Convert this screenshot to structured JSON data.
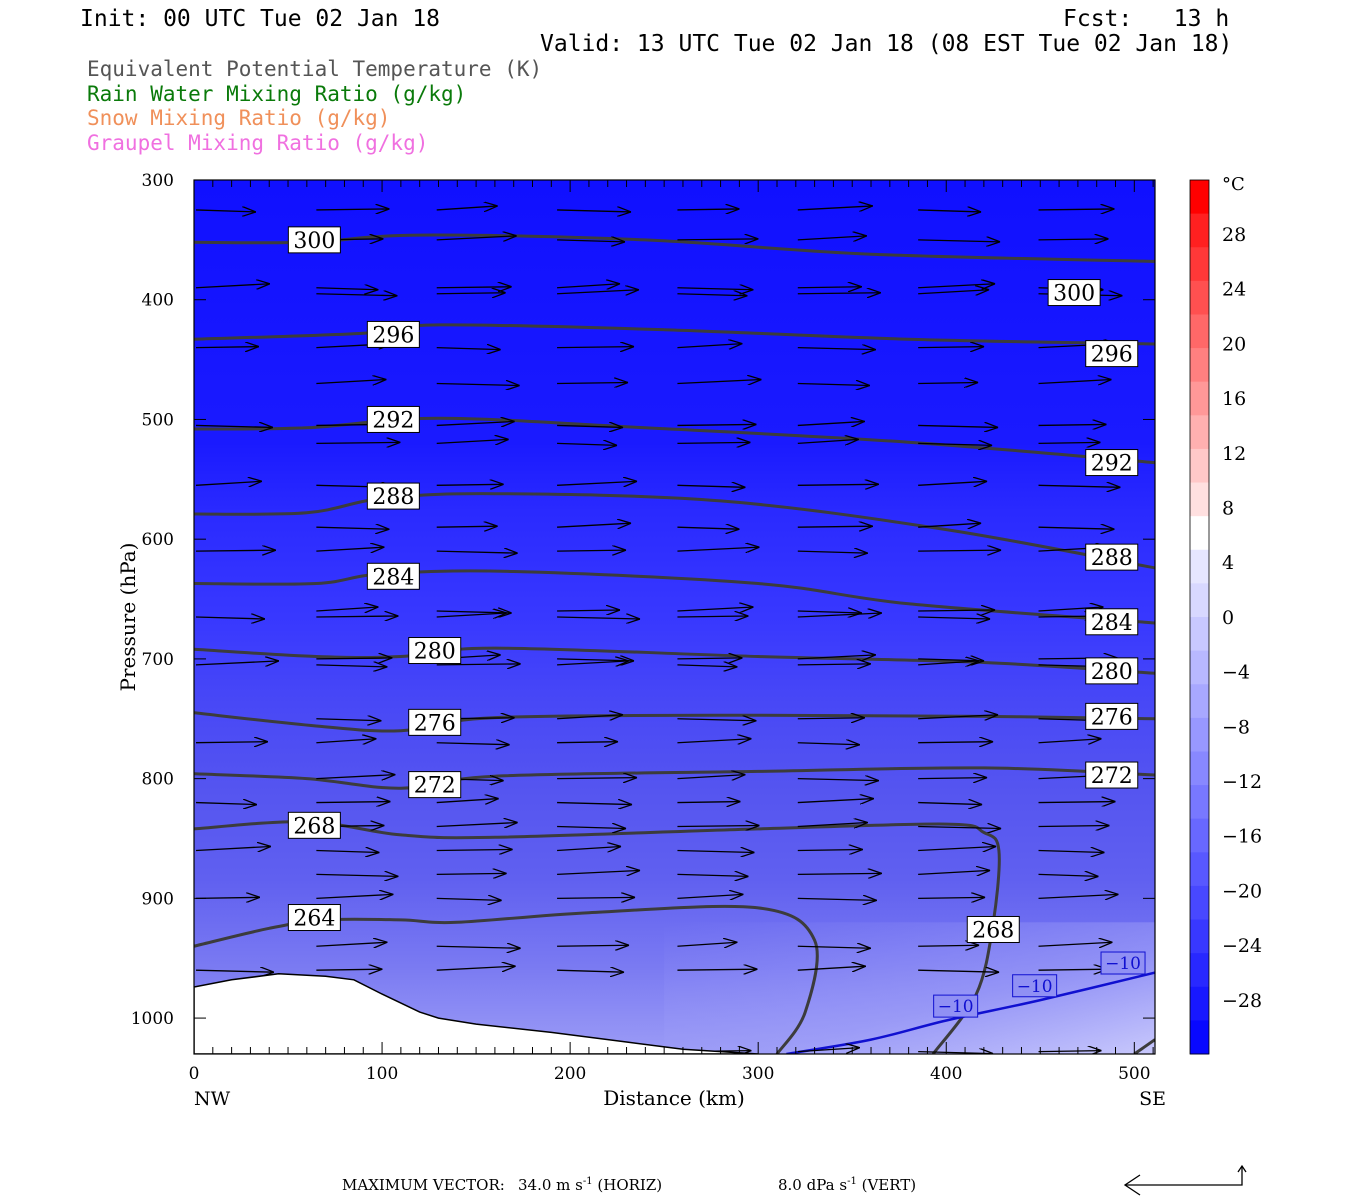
{
  "header": {
    "init": "Init: 00 UTC Tue 02 Jan 18",
    "fcst": "Fcst:   13 h",
    "valid": "Valid: 13 UTC Tue 02 Jan 18 (08 EST Tue 02 Jan 18)"
  },
  "legend": {
    "items": [
      {
        "label": "Equivalent Potential Temperature (K)",
        "color": "#555555"
      },
      {
        "label": "Rain Water Mixing Ratio (g/kg)",
        "color": "#0a7a0a"
      },
      {
        "label": "Snow Mixing Ratio (g/kg)",
        "color": "#f0905a"
      },
      {
        "label": "Graupel Mixing Ratio (g/kg)",
        "color": "#f070e0"
      }
    ]
  },
  "footer": {
    "max_vector_label": "MAXIMUM VECTOR:",
    "horiz_value": "34.0 m s",
    "horiz_exp": "-1",
    "horiz_tag": "(HORIZ)",
    "vert_value": "8.0 dPa s",
    "vert_exp": "-1",
    "vert_tag": "(VERT)"
  },
  "chart_data": {
    "type": "contour",
    "xlabel": "Distance (km)",
    "ylabel": "Pressure (hPa)",
    "xlim": [
      0,
      511
    ],
    "ylim": [
      1030,
      300
    ],
    "x_ticks": [
      0,
      100,
      200,
      300,
      400,
      500
    ],
    "y_ticks": [
      300,
      400,
      500,
      600,
      700,
      800,
      900,
      1000
    ],
    "x_end_labels": {
      "left": "NW",
      "right": "SE"
    },
    "colorbar": {
      "unit": "°C",
      "labels": [
        "28",
        "24",
        "20",
        "16",
        "12",
        "8",
        "4",
        "0",
        "−4",
        "−8",
        "−12",
        "−16",
        "−20",
        "−24",
        "−28"
      ],
      "colors": [
        "#ff0000",
        "#ff2020",
        "#ff3838",
        "#ff5050",
        "#ff6868",
        "#ff8080",
        "#ff9898",
        "#ffb0b0",
        "#ffc8c8",
        "#ffe0e0",
        "#ffffff",
        "#e6e6ff",
        "#d8d8ff",
        "#c8c8ff",
        "#b8b8ff",
        "#a8a8ff",
        "#9898ff",
        "#8888ff",
        "#7878ff",
        "#6868ff",
        "#5858ff",
        "#4848ff",
        "#3838ff",
        "#2828ff",
        "#1818ff",
        "#0808ff"
      ]
    },
    "theta_e_contours": [
      {
        "level": "300",
        "points": [
          [
            0,
            352
          ],
          [
            60,
            352
          ],
          [
            120,
            346
          ],
          [
            240,
            350
          ],
          [
            360,
            362
          ],
          [
            511,
            368
          ]
        ]
      },
      {
        "level": "296",
        "points": [
          [
            0,
            433
          ],
          [
            90,
            428
          ],
          [
            130,
            421
          ],
          [
            250,
            425
          ],
          [
            380,
            433
          ],
          [
            511,
            437
          ]
        ]
      },
      {
        "level": "292",
        "points": [
          [
            0,
            508
          ],
          [
            60,
            507
          ],
          [
            130,
            499
          ],
          [
            240,
            507
          ],
          [
            380,
            519
          ],
          [
            511,
            536
          ]
        ]
      },
      {
        "level": "288",
        "points": [
          [
            0,
            579
          ],
          [
            60,
            578
          ],
          [
            100,
            566
          ],
          [
            160,
            562
          ],
          [
            280,
            568
          ],
          [
            400,
            592
          ],
          [
            511,
            624
          ]
        ]
      },
      {
        "level": "284",
        "points": [
          [
            0,
            637
          ],
          [
            65,
            637
          ],
          [
            100,
            629
          ],
          [
            170,
            627
          ],
          [
            300,
            637
          ],
          [
            380,
            654
          ],
          [
            511,
            670
          ]
        ]
      },
      {
        "level": "280",
        "points": [
          [
            0,
            692
          ],
          [
            65,
            698
          ],
          [
            110,
            698
          ],
          [
            160,
            691
          ],
          [
            300,
            698
          ],
          [
            420,
            703
          ],
          [
            511,
            712
          ]
        ]
      },
      {
        "level": "276",
        "points": [
          [
            0,
            745
          ],
          [
            65,
            756
          ],
          [
            110,
            760
          ],
          [
            160,
            749
          ],
          [
            300,
            747
          ],
          [
            420,
            748
          ],
          [
            511,
            750
          ]
        ]
      },
      {
        "level": "272",
        "points": [
          [
            0,
            796
          ],
          [
            60,
            800
          ],
          [
            110,
            808
          ],
          [
            160,
            798
          ],
          [
            300,
            794
          ],
          [
            420,
            791
          ],
          [
            511,
            797
          ]
        ]
      },
      {
        "level": "268",
        "points": [
          [
            0,
            842
          ],
          [
            60,
            836
          ],
          [
            110,
            847
          ],
          [
            160,
            849
          ],
          [
            300,
            842
          ],
          [
            400,
            838
          ],
          [
            420,
            845
          ],
          [
            428,
            860
          ],
          [
            425,
            920
          ],
          [
            416,
            980
          ],
          [
            393,
            1030
          ]
        ]
      },
      {
        "level": "264",
        "points": [
          [
            0,
            940
          ],
          [
            40,
            925
          ],
          [
            70,
            918
          ],
          [
            110,
            918
          ],
          [
            140,
            920
          ],
          [
            210,
            912
          ],
          [
            300,
            908
          ],
          [
            330,
            935
          ],
          [
            325,
            995
          ],
          [
            310,
            1030
          ]
        ]
      }
    ],
    "theta_e_extra": [
      {
        "level": "",
        "points": [
          [
            500,
            1030
          ],
          [
            511,
            1018
          ]
        ]
      }
    ],
    "theta_e_labels": [
      {
        "text": "300",
        "x": 64,
        "p": 350
      },
      {
        "text": "300",
        "x": 468,
        "p": 394
      },
      {
        "text": "296",
        "x": 106,
        "p": 429
      },
      {
        "text": "296",
        "x": 488,
        "p": 445
      },
      {
        "text": "292",
        "x": 106,
        "p": 500
      },
      {
        "text": "292",
        "x": 488,
        "p": 536
      },
      {
        "text": "288",
        "x": 106,
        "p": 564
      },
      {
        "text": "288",
        "x": 488,
        "p": 615
      },
      {
        "text": "284",
        "x": 106,
        "p": 631
      },
      {
        "text": "284",
        "x": 488,
        "p": 669
      },
      {
        "text": "280",
        "x": 128,
        "p": 693
      },
      {
        "text": "280",
        "x": 488,
        "p": 710
      },
      {
        "text": "276",
        "x": 128,
        "p": 753
      },
      {
        "text": "276",
        "x": 488,
        "p": 748
      },
      {
        "text": "272",
        "x": 128,
        "p": 805
      },
      {
        "text": "272",
        "x": 488,
        "p": 797
      },
      {
        "text": "268",
        "x": 64,
        "p": 839
      },
      {
        "text": "268",
        "x": 425,
        "p": 926
      },
      {
        "text": "264",
        "x": 64,
        "p": 916
      }
    ],
    "temp_minus10_line": {
      "level": "−10",
      "points": [
        [
          315,
          1030
        ],
        [
          360,
          1018
        ],
        [
          400,
          1002
        ],
        [
          450,
          985
        ],
        [
          511,
          962
        ]
      ]
    },
    "temp_minus10_labels": [
      {
        "text": "−10",
        "x": 405,
        "p": 990
      },
      {
        "text": "−10",
        "x": 447,
        "p": 973
      },
      {
        "text": "−10",
        "x": 494,
        "p": 954
      }
    ],
    "terrain": [
      [
        0,
        974
      ],
      [
        20,
        968
      ],
      [
        45,
        963
      ],
      [
        70,
        965
      ],
      [
        85,
        968
      ],
      [
        100,
        980
      ],
      [
        120,
        995
      ],
      [
        130,
        1000
      ],
      [
        150,
        1005
      ],
      [
        190,
        1012
      ],
      [
        230,
        1020
      ],
      [
        260,
        1026
      ],
      [
        300,
        1030
      ]
    ],
    "wind_rows": [
      300,
      325,
      350,
      390,
      400,
      440,
      470,
      510,
      520,
      560,
      580,
      620,
      650,
      690,
      700,
      745,
      765,
      790,
      830,
      850,
      875,
      900,
      940,
      960,
      1020,
      1030
    ]
  }
}
